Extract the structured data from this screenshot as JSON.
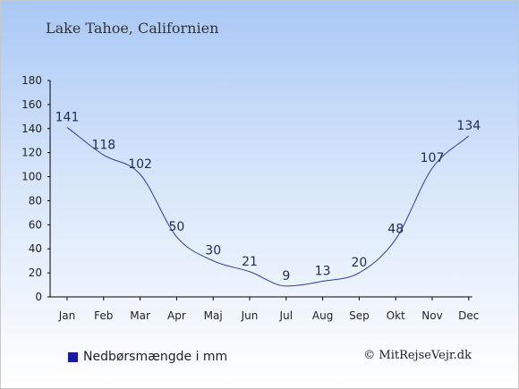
{
  "title": "Lake Tahoe, Californien",
  "legend_label": "Nedbørsmængde i mm",
  "credit": "© MitRejseVejr.dk",
  "colors": {
    "line": "#2c3aa6",
    "swatch": "#1a1aa0",
    "text": "#222222"
  },
  "chart_data": {
    "type": "line",
    "title": "Lake Tahoe, Californien",
    "categories": [
      "Jan",
      "Feb",
      "Mar",
      "Apr",
      "Maj",
      "Jun",
      "Jul",
      "Aug",
      "Sep",
      "Okt",
      "Nov",
      "Dec"
    ],
    "series": [
      {
        "name": "Nedbørsmængde i mm",
        "values": [
          141,
          118,
          102,
          50,
          30,
          21,
          9,
          13,
          20,
          48,
          107,
          134
        ]
      }
    ],
    "ylim": [
      0,
      180
    ],
    "yticks": [
      0,
      20,
      40,
      60,
      80,
      100,
      120,
      140,
      160,
      180
    ],
    "grid": false,
    "legend_position": "bottom-left",
    "xlabel": "",
    "ylabel": ""
  }
}
